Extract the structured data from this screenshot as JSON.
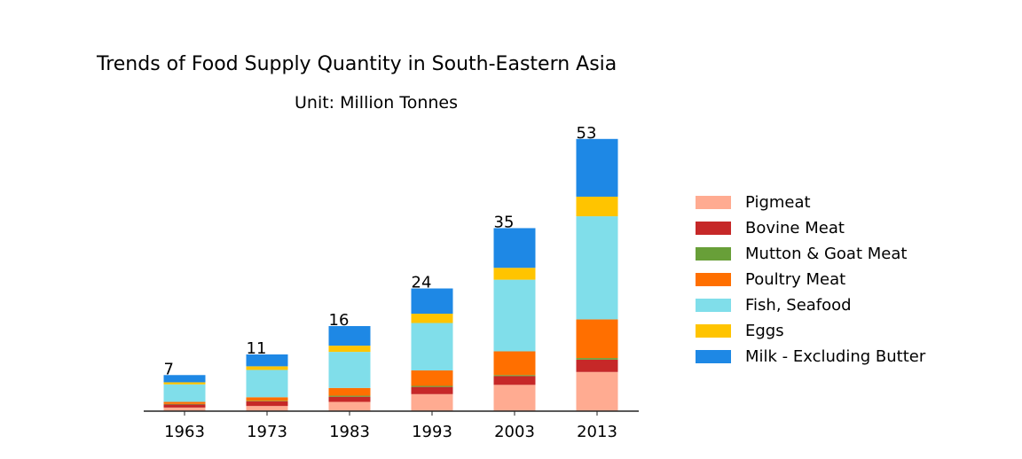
{
  "title": "Trends of Food Supply Quantity in South-Eastern Asia",
  "subtitle": "Unit: Million Tonnes",
  "chart_data": {
    "type": "bar",
    "stacked": true,
    "title": "Trends of Food Supply Quantity in South-Eastern Asia",
    "subtitle": "Unit: Million Tonnes",
    "categories": [
      "1963",
      "1973",
      "1983",
      "1993",
      "2003",
      "2013"
    ],
    "series": [
      {
        "name": "Pigmeat",
        "color": "#ffab91",
        "values": [
          0.7,
          1.0,
          1.8,
          3.3,
          5.1,
          7.6
        ]
      },
      {
        "name": "Bovine Meat",
        "color": "#c62828",
        "values": [
          0.6,
          0.9,
          1.0,
          1.4,
          1.7,
          2.4
        ]
      },
      {
        "name": "Mutton & Goat Meat",
        "color": "#689f38",
        "values": [
          0.1,
          0.1,
          0.2,
          0.2,
          0.2,
          0.3
        ]
      },
      {
        "name": "Poultry Meat",
        "color": "#ff6f00",
        "values": [
          0.4,
          0.7,
          1.5,
          3.0,
          4.6,
          7.5
        ]
      },
      {
        "name": "Fish, Seafood",
        "color": "#80deea",
        "values": [
          3.4,
          5.3,
          7.0,
          9.2,
          13.9,
          20.0
        ]
      },
      {
        "name": "Eggs",
        "color": "#ffc400",
        "values": [
          0.4,
          0.7,
          1.2,
          1.8,
          2.3,
          3.8
        ]
      },
      {
        "name": "Milk - Excluding Butter",
        "color": "#1e88e5",
        "values": [
          1.4,
          2.3,
          3.8,
          4.9,
          7.7,
          11.2
        ]
      }
    ],
    "totals": [
      "7",
      "11",
      "16",
      "24",
      "35",
      "53"
    ],
    "ylim": [
      0,
      55
    ],
    "xlabel": "",
    "ylabel": "",
    "grid": false,
    "legend_position": "right"
  }
}
